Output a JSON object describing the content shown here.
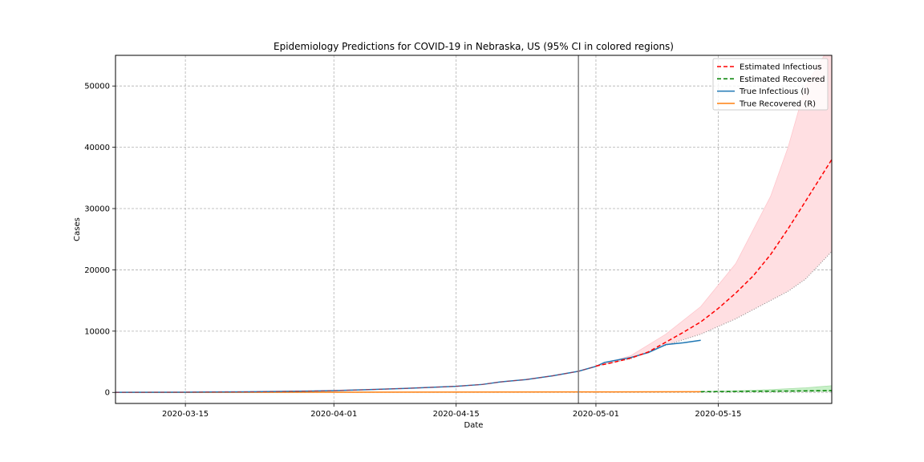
{
  "chart_data": {
    "type": "line",
    "title": "Epidemiology Predictions for COVID-19 in Nebraska, US (95% CI in colored regions)",
    "xlabel": "Date",
    "ylabel": "Cases",
    "xlim": [
      "2020-03-07",
      "2020-05-28"
    ],
    "ylim": [
      -1800,
      55000
    ],
    "x_ticks": [
      "2020-03-15",
      "2020-04-01",
      "2020-04-15",
      "2020-05-01",
      "2020-05-15"
    ],
    "y_ticks": [
      0,
      10000,
      20000,
      30000,
      40000,
      50000
    ],
    "grid": true,
    "legend_position": "top-right",
    "vertical_line_date": "2020-04-29",
    "colors": {
      "estimated_infectious": "#ff0000",
      "estimated_recovered": "#008000",
      "true_infectious": "#1f77b4",
      "true_recovered": "#ff7f0e",
      "infectious_ci_fill": "#ffdfe2",
      "recovered_ci_fill": "#c8f0c8",
      "vertical_line": "#808080"
    },
    "series": [
      {
        "name": "Estimated Infectious",
        "style": "dashed",
        "x": [
          "2020-05-01",
          "2020-05-03",
          "2020-05-05",
          "2020-05-07",
          "2020-05-09",
          "2020-05-11",
          "2020-05-13",
          "2020-05-15",
          "2020-05-17",
          "2020-05-19",
          "2020-05-21",
          "2020-05-23",
          "2020-05-25",
          "2020-05-28"
        ],
        "values": [
          4300,
          4900,
          5600,
          6600,
          8200,
          9800,
          11500,
          13700,
          16200,
          19000,
          22500,
          26700,
          31200,
          38000
        ]
      },
      {
        "name": "Estimated Recovered",
        "style": "dashed",
        "x": [
          "2020-05-13",
          "2020-05-17",
          "2020-05-21",
          "2020-05-25",
          "2020-05-28"
        ],
        "values": [
          120,
          160,
          200,
          250,
          300
        ]
      },
      {
        "name": "True Infectious (I)",
        "style": "solid",
        "x": [
          "2020-03-07",
          "2020-03-15",
          "2020-03-22",
          "2020-03-29",
          "2020-04-01",
          "2020-04-05",
          "2020-04-10",
          "2020-04-15",
          "2020-04-18",
          "2020-04-20",
          "2020-04-23",
          "2020-04-26",
          "2020-04-29",
          "2020-05-01",
          "2020-05-02",
          "2020-05-05",
          "2020-05-07",
          "2020-05-09",
          "2020-05-11",
          "2020-05-13"
        ],
        "values": [
          10,
          40,
          100,
          220,
          300,
          450,
          700,
          1000,
          1300,
          1700,
          2100,
          2700,
          3450,
          4250,
          4900,
          5700,
          6500,
          7800,
          8100,
          8500
        ]
      },
      {
        "name": "True Recovered (R)",
        "style": "solid",
        "x": [
          "2020-03-07",
          "2020-04-01",
          "2020-04-29",
          "2020-05-13"
        ],
        "values": [
          0,
          30,
          80,
          110
        ]
      }
    ],
    "confidence_bands": [
      {
        "series": "Estimated Infectious",
        "x": [
          "2020-05-01",
          "2020-05-05",
          "2020-05-09",
          "2020-05-13",
          "2020-05-17",
          "2020-05-21",
          "2020-05-23",
          "2020-05-25",
          "2020-05-28"
        ],
        "lower": [
          4300,
          5500,
          7700,
          9500,
          12000,
          15000,
          16500,
          18500,
          23000
        ],
        "upper": [
          4300,
          6000,
          9500,
          14000,
          21000,
          32000,
          40000,
          50000,
          57000
        ]
      },
      {
        "series": "Estimated Recovered",
        "x": [
          "2020-05-13",
          "2020-05-17",
          "2020-05-21",
          "2020-05-25",
          "2020-05-28"
        ],
        "lower": [
          100,
          110,
          120,
          130,
          150
        ],
        "upper": [
          120,
          250,
          450,
          750,
          1100
        ]
      }
    ]
  }
}
